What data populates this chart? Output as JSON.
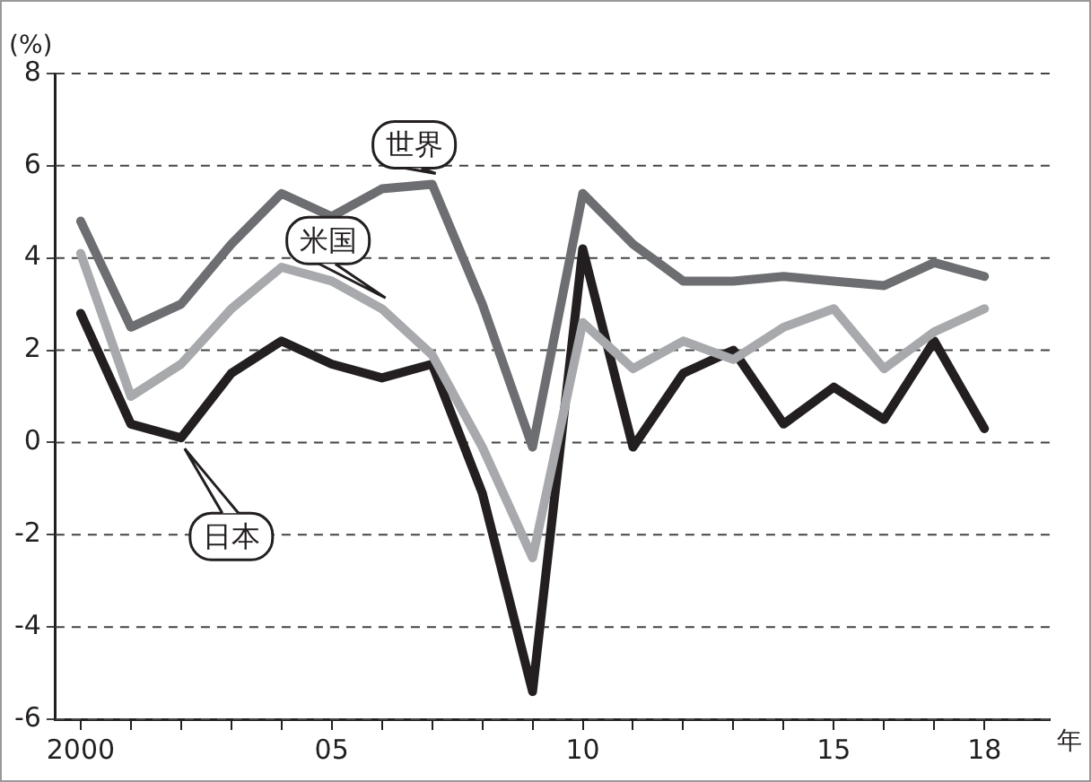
{
  "chart_data": {
    "type": "line",
    "ylabel": "(%)",
    "xlabel": "年",
    "x": [
      2000,
      2001,
      2002,
      2003,
      2004,
      2005,
      2006,
      2007,
      2008,
      2009,
      2010,
      2011,
      2012,
      2013,
      2014,
      2015,
      2016,
      2017,
      2018
    ],
    "series": [
      {
        "name": "世界",
        "color": "#6d6e71",
        "values": [
          4.8,
          2.5,
          3.0,
          4.3,
          5.4,
          4.9,
          5.5,
          5.6,
          3.0,
          -0.1,
          5.4,
          4.3,
          3.5,
          3.5,
          3.6,
          3.5,
          3.4,
          3.9,
          3.6
        ]
      },
      {
        "name": "米国",
        "color": "#a7a9ac",
        "values": [
          4.1,
          1.0,
          1.7,
          2.9,
          3.8,
          3.5,
          2.9,
          1.9,
          -0.1,
          -2.5,
          2.6,
          1.6,
          2.2,
          1.8,
          2.5,
          2.9,
          1.6,
          2.4,
          2.9
        ]
      },
      {
        "name": "日本",
        "color": "#231f20",
        "values": [
          2.8,
          0.4,
          0.1,
          1.5,
          2.2,
          1.7,
          1.4,
          1.7,
          -1.1,
          -5.4,
          4.2,
          -0.1,
          1.5,
          2.0,
          0.4,
          1.2,
          0.5,
          2.2,
          0.3
        ]
      }
    ],
    "xlim": [
      1999.5,
      2019.3
    ],
    "xticks": [
      2000,
      {
        "value": 2001,
        "label": null
      },
      {
        "value": 2002,
        "label": null
      },
      {
        "value": 2003,
        "label": null
      },
      {
        "value": 2004,
        "label": null
      },
      {
        "value": 2005,
        "label": "05"
      },
      {
        "value": 2006,
        "label": null
      },
      {
        "value": 2007,
        "label": null
      },
      {
        "value": 2008,
        "label": null
      },
      {
        "value": 2009,
        "label": null
      },
      {
        "value": 2010,
        "label": "10"
      },
      {
        "value": 2011,
        "label": null
      },
      {
        "value": 2012,
        "label": null
      },
      {
        "value": 2013,
        "label": null
      },
      {
        "value": 2014,
        "label": null
      },
      {
        "value": 2015,
        "label": "15"
      },
      {
        "value": 2016,
        "label": null
      },
      {
        "value": 2017,
        "label": null
      },
      {
        "value": 2018,
        "label": "18"
      }
    ],
    "ylim": [
      -6,
      8
    ],
    "yticks": [
      -6,
      -4,
      -2,
      0,
      2,
      4,
      6,
      8
    ],
    "grid": "y",
    "marker": "none",
    "line_style": "solid"
  }
}
